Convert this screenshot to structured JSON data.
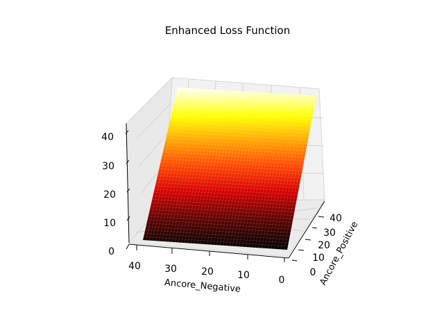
{
  "chart_data": {
    "type": "surface3d",
    "title": "Enhanced Loss Function",
    "xlabel": "Ancore_Negative",
    "ylabel": "Ancore_Positive",
    "zlabel": "",
    "xlim": [
      0,
      45
    ],
    "ylim": [
      0,
      45
    ],
    "zlim": [
      0,
      45
    ],
    "x_ticks": [
      "40",
      "30",
      "20",
      "10",
      "0"
    ],
    "y_ticks": [
      "0",
      "10",
      "20",
      "30",
      "40"
    ],
    "z_ticks": [
      "0",
      "10",
      "20",
      "30",
      "40"
    ],
    "colormap": "hot",
    "surface": {
      "formula": "z = max(0, positive - negative + margin)",
      "margin": 2,
      "grid_step": 1,
      "sample_points": [
        {
          "negative": 0,
          "positive": 0,
          "z": 2
        },
        {
          "negative": 0,
          "positive": 44,
          "z": 46
        },
        {
          "negative": 44,
          "positive": 0,
          "z": 0
        },
        {
          "negative": 44,
          "positive": 44,
          "z": 2
        }
      ]
    },
    "grid": true
  }
}
